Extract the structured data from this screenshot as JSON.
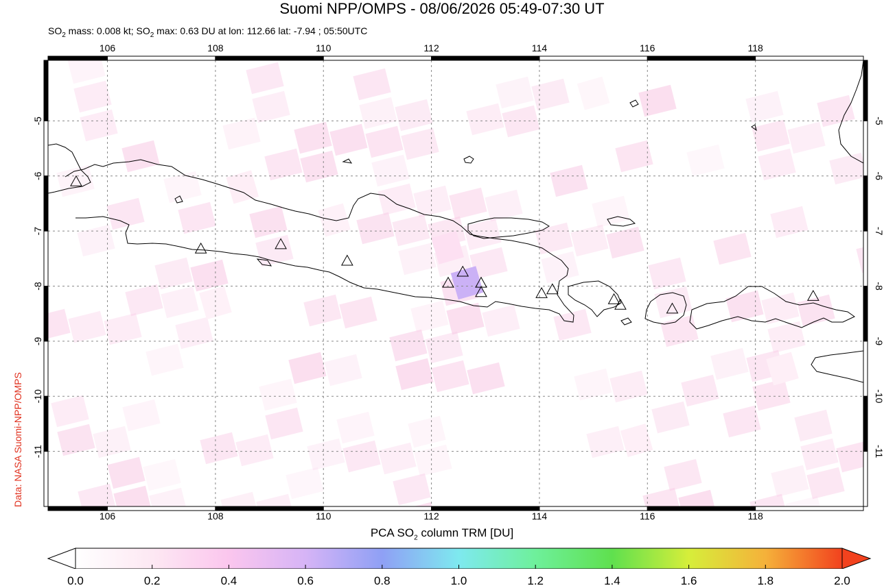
{
  "title": "Suomi NPP/OMPS - 08/06/2026 05:49-07:30 UT",
  "subtitle": {
    "mass_prefix": "SO",
    "mass_sub": "2",
    "mass_text": " mass: 0.008 kt; SO",
    "max_sub": "2",
    "max_text": " max: 0.63 DU at lon: 112.66 lat: -7.94 ; 05:50UTC"
  },
  "credit": "Data: NASA Suomi-NPP/OMPS",
  "map": {
    "lon_range": [
      104.9,
      120.0
    ],
    "lat_range": [
      -12.0,
      -3.9
    ],
    "lon_ticks": [
      "106",
      "108",
      "110",
      "112",
      "114",
      "116",
      "118"
    ],
    "lat_ticks": [
      "-5",
      "-6",
      "-7",
      "-8",
      "-9",
      "-10",
      "-11"
    ],
    "grid": "dotted",
    "volcanoes": [
      {
        "lon": 105.42,
        "lat": -6.1
      },
      {
        "lon": 107.73,
        "lat": -7.32
      },
      {
        "lon": 109.21,
        "lat": -7.24
      },
      {
        "lon": 110.44,
        "lat": -7.54
      },
      {
        "lon": 112.31,
        "lat": -7.94
      },
      {
        "lon": 112.58,
        "lat": -7.74
      },
      {
        "lon": 112.92,
        "lat": -7.94
      },
      {
        "lon": 112.92,
        "lat": -8.11
      },
      {
        "lon": 114.04,
        "lat": -8.13
      },
      {
        "lon": 114.24,
        "lat": -8.06
      },
      {
        "lon": 115.38,
        "lat": -8.24
      },
      {
        "lon": 115.5,
        "lat": -8.34
      },
      {
        "lon": 116.46,
        "lat": -8.41
      },
      {
        "lon": 119.07,
        "lat": -8.18
      }
    ],
    "so2_pixels": [
      {
        "lon": 112.66,
        "lat": -7.94,
        "du": 0.63
      },
      {
        "lon": 112.3,
        "lat": -7.3,
        "du": 0.25
      },
      {
        "lon": 110.2,
        "lat": -6.8,
        "du": 0.12
      },
      {
        "lon": 108.5,
        "lat": -6.2,
        "du": 0.15
      },
      {
        "lon": 108.0,
        "lat": -8.3,
        "du": 0.12
      },
      {
        "lon": 115.0,
        "lat": -4.5,
        "du": 0.08
      },
      {
        "lon": 118.5,
        "lat": -9.5,
        "du": 0.14
      },
      {
        "lon": 115.8,
        "lat": -10.8,
        "du": 0.14
      }
    ]
  },
  "colorbar": {
    "label_prefix": "PCA SO",
    "label_sub": "2",
    "label_suffix": " column TRM [DU]",
    "ticks": [
      "0.0",
      "0.2",
      "0.4",
      "0.6",
      "0.8",
      "1.0",
      "1.2",
      "1.4",
      "1.6",
      "1.8",
      "2.0"
    ],
    "colors": [
      "#ffffff",
      "#fde8f3",
      "#fbc6ee",
      "#d6b4f6",
      "#8fa0f5",
      "#7ee9ef",
      "#6ef09b",
      "#5fe04e",
      "#d6ee3a",
      "#f5b13a",
      "#f2421e"
    ]
  }
}
